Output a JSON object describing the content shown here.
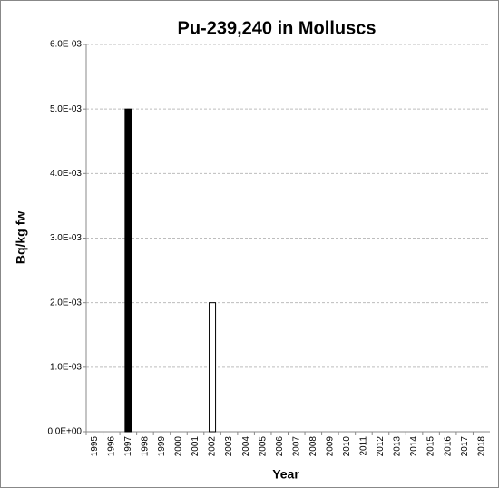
{
  "chart_data": {
    "type": "bar",
    "title": "Pu-239,240 in Molluscs",
    "x_label": "Year",
    "y_label": "Bq/kg fw",
    "categories": [
      "1995",
      "1996",
      "1997",
      "1998",
      "1999",
      "2000",
      "2001",
      "2002",
      "2003",
      "2004",
      "2005",
      "2006",
      "2007",
      "2008",
      "2009",
      "2010",
      "2011",
      "2012",
      "2013",
      "2014",
      "2015",
      "2016",
      "2017",
      "2018"
    ],
    "values": [
      null,
      null,
      0.005,
      null,
      null,
      null,
      null,
      0.002,
      null,
      null,
      null,
      null,
      null,
      null,
      null,
      null,
      null,
      null,
      null,
      null,
      null,
      null,
      null,
      null
    ],
    "colors": [
      null,
      null,
      "#000000",
      null,
      null,
      null,
      null,
      "#ffffff",
      null,
      null,
      null,
      null,
      null,
      null,
      null,
      null,
      null,
      null,
      null,
      null,
      null,
      null,
      null,
      null
    ],
    "ylim": [
      0,
      0.006
    ],
    "yticks": [
      {
        "value": 0,
        "label": "0.0E+00"
      },
      {
        "value": 0.001,
        "label": "1.0E-03"
      },
      {
        "value": 0.002,
        "label": "2.0E-03"
      },
      {
        "value": 0.003,
        "label": "3.0E-03"
      },
      {
        "value": 0.004,
        "label": "4.0E-03"
      },
      {
        "value": 0.005,
        "label": "5.0E-03"
      },
      {
        "value": 0.006,
        "label": "6.0E-03"
      }
    ],
    "grid": true
  }
}
